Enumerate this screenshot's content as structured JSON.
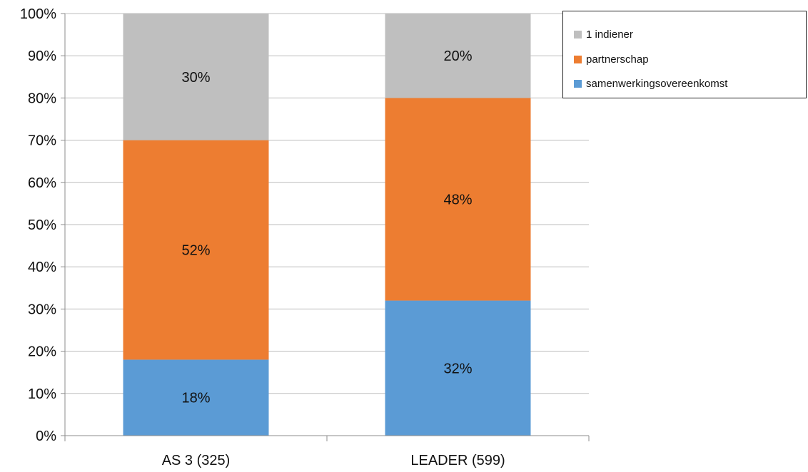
{
  "chart_data": {
    "type": "bar",
    "stacked": true,
    "categories": [
      "AS 3 (325)",
      "LEADER (599)"
    ],
    "series": [
      {
        "name": "samenwerkingsovereenkomst",
        "values": [
          18,
          32
        ],
        "color": "#5b9bd5"
      },
      {
        "name": "partnerschap",
        "values": [
          52,
          48
        ],
        "color": "#ed7d31"
      },
      {
        "name": "1 indiener",
        "values": [
          30,
          20
        ],
        "color": "#bfbfbf"
      }
    ],
    "data_labels": [
      [
        "18%",
        "52%",
        "30%"
      ],
      [
        "32%",
        "48%",
        "20%"
      ]
    ],
    "y_ticks": [
      "0%",
      "10%",
      "20%",
      "30%",
      "40%",
      "50%",
      "60%",
      "70%",
      "80%",
      "90%",
      "100%"
    ],
    "ylim": [
      0,
      100
    ],
    "grid": true,
    "legend_position": "top-right",
    "legend_order": [
      "1 indiener",
      "partnerschap",
      "samenwerkingsovereenkomst"
    ]
  }
}
